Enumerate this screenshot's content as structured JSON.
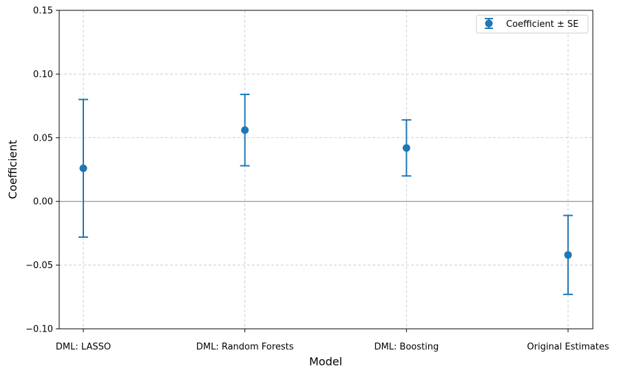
{
  "chart_data": {
    "type": "errorbar",
    "title": "",
    "xlabel": "Model",
    "ylabel": "Coefficient",
    "categories": [
      "DML: LASSO",
      "DML: Random Forests",
      "DML: Boosting",
      "Original Estimates"
    ],
    "series": [
      {
        "name": "Coefficient ± SE",
        "values": [
          0.026,
          0.056,
          0.042,
          -0.042
        ],
        "errors": [
          0.054,
          0.028,
          0.022,
          0.031
        ]
      }
    ],
    "ylim": [
      -0.1,
      0.15
    ],
    "yticks": [
      -0.1,
      -0.05,
      0.0,
      0.05,
      0.1,
      0.15
    ],
    "ytick_labels": [
      "−0.10",
      "−0.05",
      "0.00",
      "0.05",
      "0.10",
      "0.15"
    ],
    "zero_line": true,
    "grid": true,
    "legend_position": "top-right",
    "colors": {
      "series": "#1f77b4",
      "grid": "#c8c8c8",
      "zero_line": "#808080",
      "axes": "#000000"
    }
  }
}
